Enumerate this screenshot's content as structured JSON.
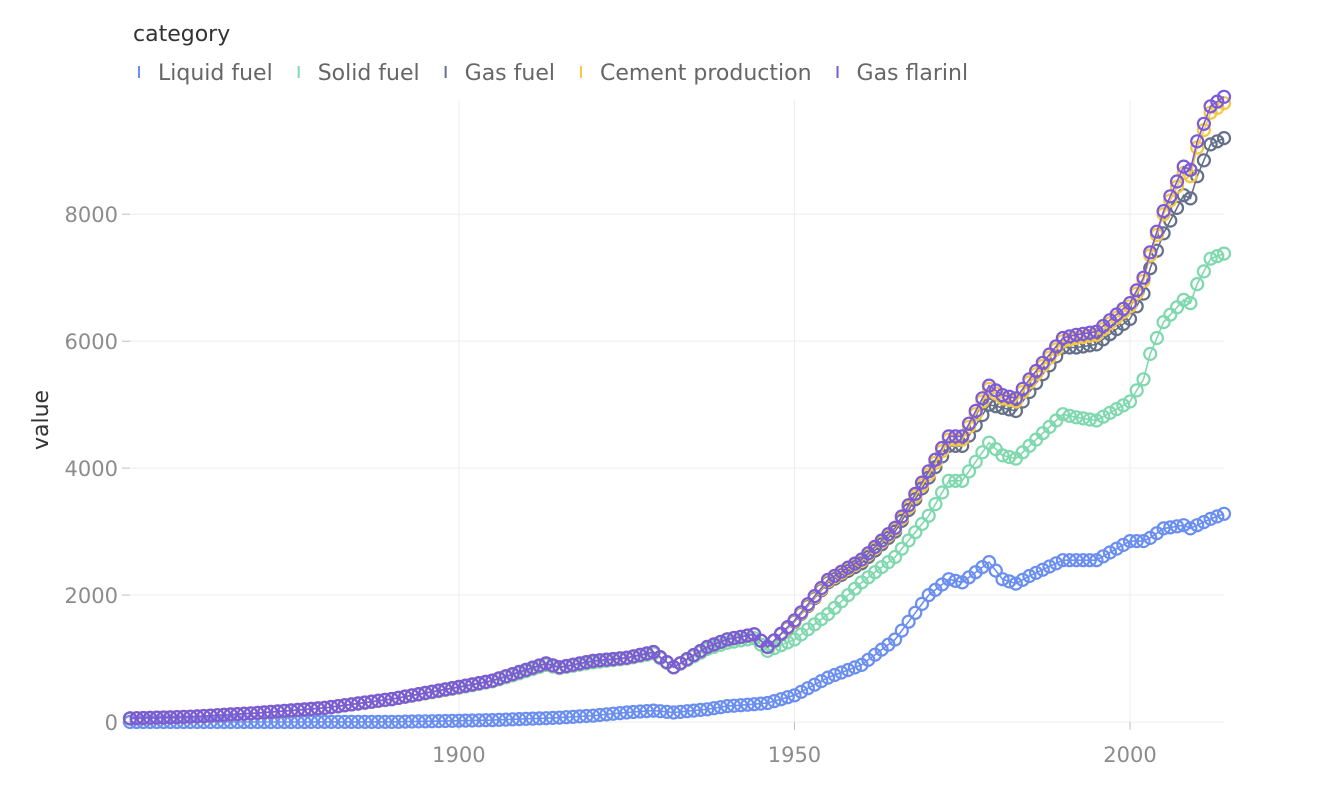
{
  "chart_data": {
    "type": "line",
    "title": "",
    "xlabel": "",
    "ylabel": "value",
    "legend_title": "category",
    "legend_position": "top-left",
    "xlim": [
      1851,
      2014
    ],
    "ylim": [
      0,
      9800
    ],
    "x_ticks": [
      1900,
      1950,
      2000
    ],
    "y_ticks": [
      0,
      2000,
      4000,
      6000,
      8000
    ],
    "grid": true,
    "markers": "hollow-circle",
    "x": {
      "start": 1851,
      "end": 2014,
      "step": 1
    },
    "anchors": [
      1851,
      1860,
      1870,
      1880,
      1890,
      1900,
      1905,
      1910,
      1913,
      1915,
      1920,
      1925,
      1929,
      1932,
      1937,
      1940,
      1944,
      1946,
      1950,
      1955,
      1960,
      1965,
      1970,
      1973,
      1975,
      1979,
      1981,
      1983,
      1985,
      1990,
      1992,
      1995,
      2000,
      2002,
      2003,
      2005,
      2008,
      2009,
      2010,
      2012,
      2014
    ],
    "series": [
      {
        "name": "Liquid fuel",
        "color": "#6b8ff0",
        "values": [
          0,
          0,
          0,
          1,
          2,
          20,
          30,
          50,
          60,
          70,
          100,
          150,
          180,
          150,
          200,
          250,
          280,
          300,
          420,
          700,
          900,
          1300,
          2000,
          2250,
          2200,
          2520,
          2250,
          2180,
          2300,
          2550,
          2550,
          2550,
          2850,
          2850,
          2900,
          3050,
          3100,
          3050,
          3100,
          3200,
          3280
        ]
      },
      {
        "name": "Solid fuel",
        "color": "#7fd8ae",
        "values": [
          55,
          80,
          140,
          220,
          360,
          540,
          640,
          800,
          900,
          850,
          940,
          1000,
          1080,
          860,
          1150,
          1250,
          1320,
          1120,
          1300,
          1700,
          2200,
          2600,
          3250,
          3800,
          3800,
          4400,
          4200,
          4150,
          4350,
          4850,
          4800,
          4750,
          5050,
          5400,
          5800,
          6300,
          6650,
          6600,
          6900,
          7300,
          7380
        ]
      },
      {
        "name": "Gas fuel",
        "color": "#64708a",
        "values": [
          55,
          80,
          140,
          220,
          360,
          550,
          650,
          820,
          920,
          860,
          960,
          1010,
          1100,
          860,
          1180,
          1300,
          1380,
          1180,
          1580,
          2200,
          2500,
          3000,
          3850,
          4350,
          4350,
          5000,
          4950,
          4900,
          5200,
          5900,
          5900,
          5950,
          6350,
          6750,
          7150,
          7700,
          8300,
          8250,
          8600,
          9100,
          9200
        ]
      },
      {
        "name": "Cement production",
        "color": "#f5c842",
        "values": [
          56,
          82,
          142,
          222,
          362,
          552,
          652,
          822,
          922,
          862,
          962,
          1012,
          1102,
          862,
          1182,
          1302,
          1382,
          1182,
          1590,
          2220,
          2540,
          3040,
          3900,
          4450,
          4450,
          5250,
          5100,
          5050,
          5350,
          6000,
          6050,
          6100,
          6550,
          6950,
          7350,
          8000,
          8650,
          8600,
          9050,
          9600,
          9750
        ]
      },
      {
        "name": "Gas flarinl",
        "color": "#7a5bd9",
        "values": [
          57,
          83,
          143,
          223,
          363,
          553,
          653,
          823,
          923,
          863,
          963,
          1013,
          1103,
          863,
          1183,
          1303,
          1383,
          1183,
          1600,
          2240,
          2560,
          3060,
          3950,
          4500,
          4500,
          5300,
          5150,
          5100,
          5400,
          6050,
          6100,
          6150,
          6600,
          7000,
          7400,
          8050,
          8750,
          8700,
          9150,
          9700,
          9850
        ]
      }
    ]
  }
}
